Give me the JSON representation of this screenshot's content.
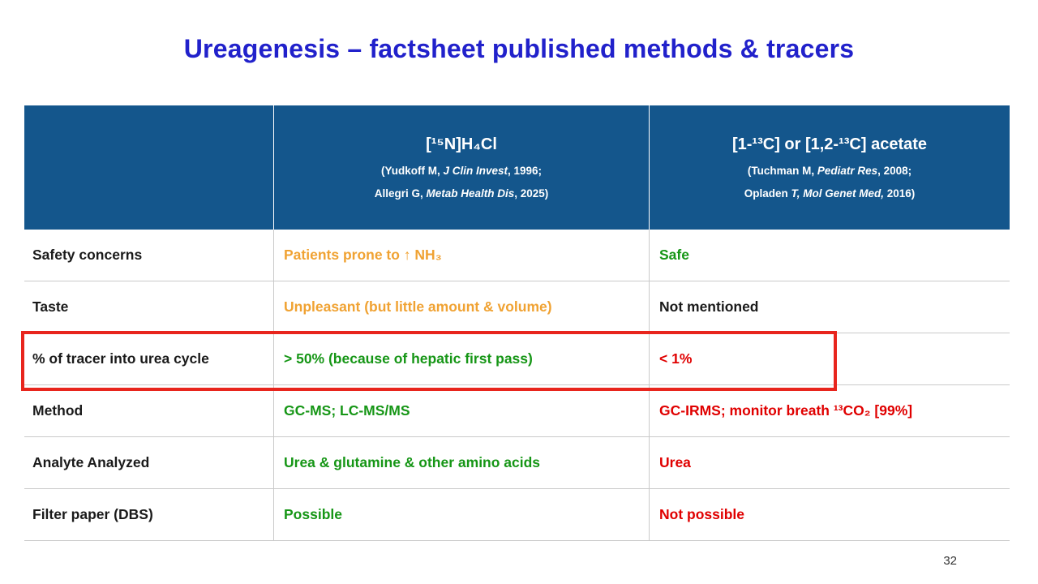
{
  "slide": {
    "title": "Ureagenesis – factsheet published methods & tracers",
    "page_number": "32"
  },
  "colors": {
    "title_blue": "#2121CB",
    "header_bg": "#14568C",
    "value_orange": "#F0A232",
    "value_green": "#169616",
    "value_red": "#E00000",
    "highlight_box_red": "#E8251D",
    "grid_line": "#C9C9C9"
  },
  "table": {
    "header": {
      "col1": "",
      "col2": {
        "title": "[¹⁵N]H₄Cl",
        "cites": [
          {
            "pre": "(Yudkoff M, ",
            "it": "J Clin Invest",
            "post": ", 1996;"
          },
          {
            "pre": "Allegri G, ",
            "it": "Metab Health Dis",
            "post": ", 2025)"
          }
        ]
      },
      "col3": {
        "title": "[1-¹³C] or [1,2-¹³C]  acetate",
        "cites": [
          {
            "pre": "(Tuchman M, ",
            "it": "Pediatr Res",
            "post": ", 2008;"
          },
          {
            "pre": "Opladen ",
            "it": "T, Mol Genet Med,",
            "post": " 2016)"
          }
        ]
      }
    },
    "rows": [
      {
        "label": "Safety concerns",
        "col2": "Patients prone to ↑ NH₃",
        "col2_color": "orange",
        "col3": "Safe",
        "col3_color": "green"
      },
      {
        "label": "Taste",
        "col2": "Unpleasant (but little amount & volume)",
        "col2_color": "orange",
        "col3": "Not mentioned",
        "col3_color": "black"
      },
      {
        "label": "% of tracer into urea cycle",
        "col2": "> 50% (because of hepatic first pass)",
        "col2_color": "green",
        "col3": "< 1%",
        "col3_color": "red"
      },
      {
        "label": "Method",
        "col2": "GC-MS; LC-MS/MS",
        "col2_color": "green",
        "col3": "GC-IRMS; monitor breath ¹³CO₂ [99%]",
        "col3_color": "red"
      },
      {
        "label": "Analyte Analyzed",
        "col2": "Urea & glutamine & other amino acids",
        "col2_color": "green",
        "col3": "Urea",
        "col3_color": "red"
      },
      {
        "label": "Filter paper (DBS)",
        "col2": "Possible",
        "col2_color": "green",
        "col3": "Not possible",
        "col3_color": "red"
      }
    ]
  }
}
